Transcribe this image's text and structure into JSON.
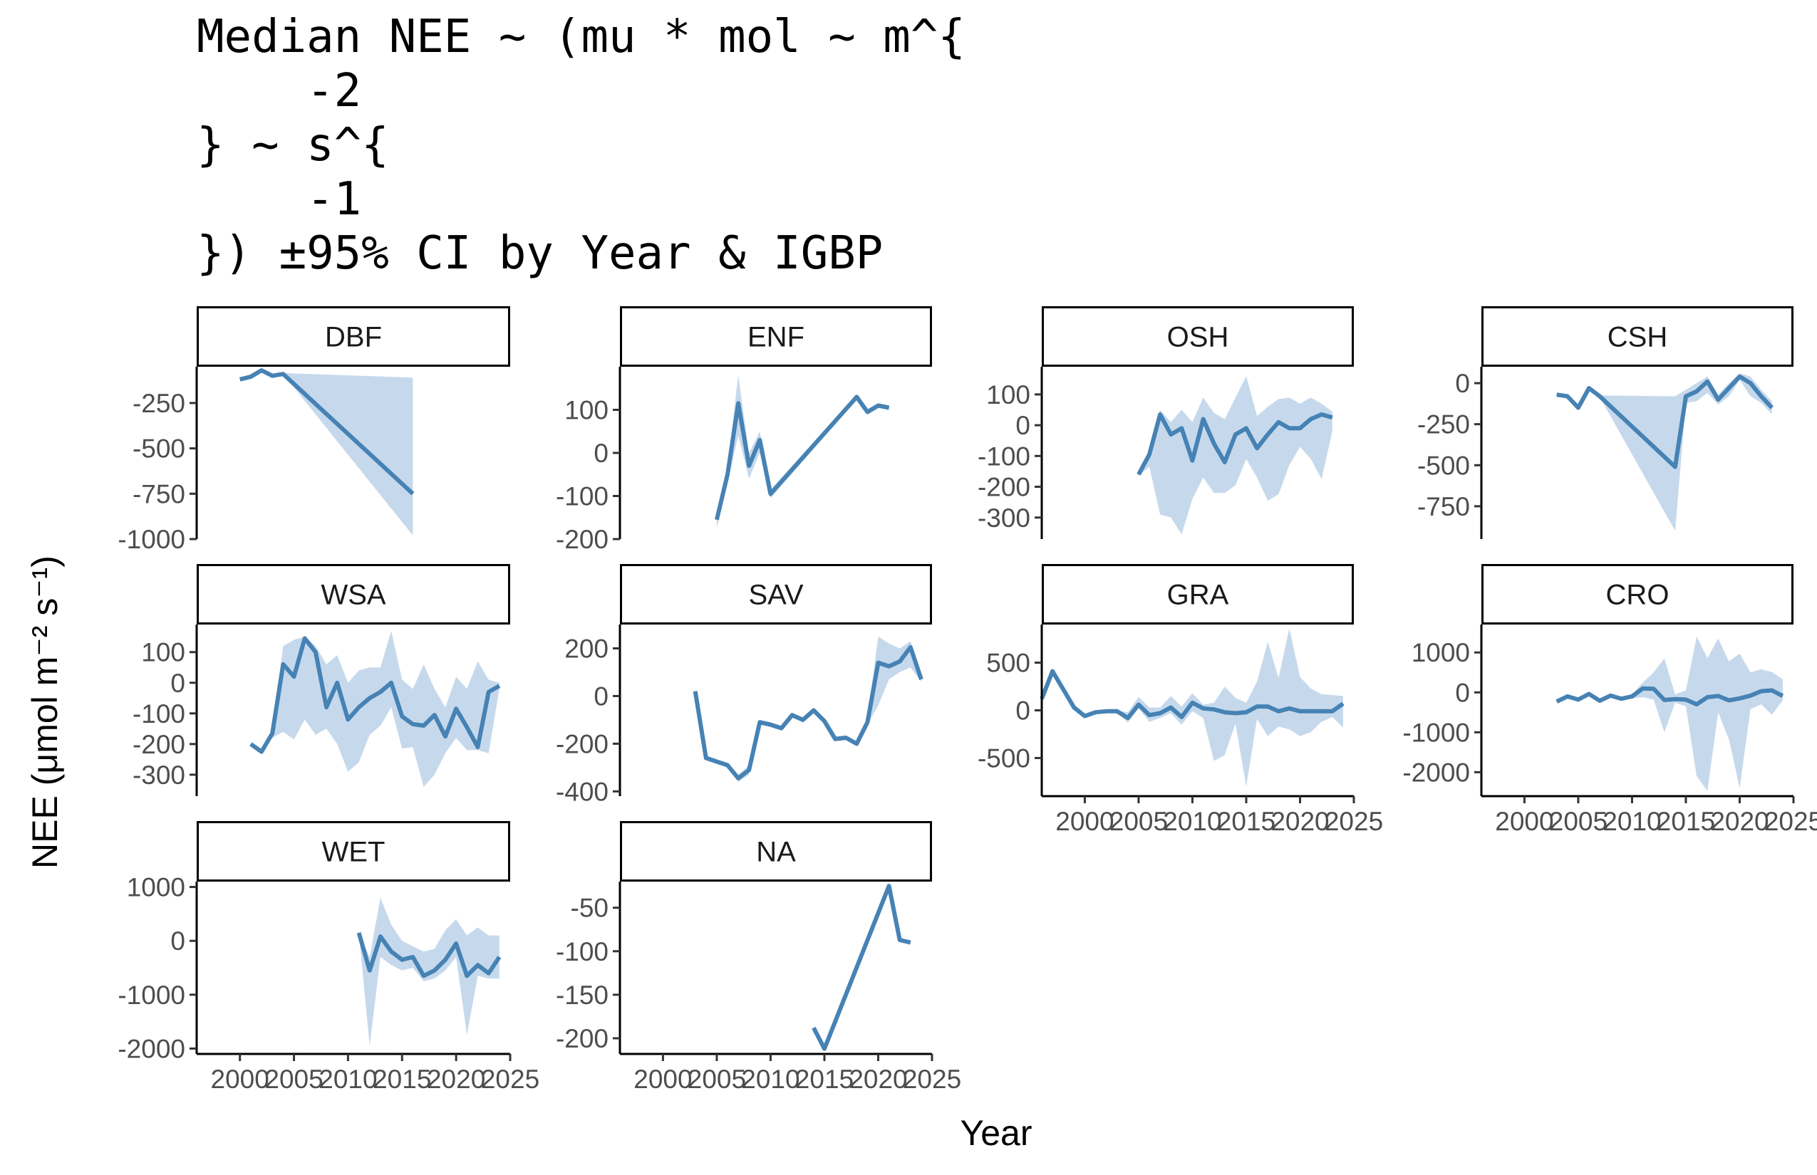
{
  "chart_data": {
    "type": "line",
    "title_lines": [
      "Median NEE ~ (mu * mol ~ m^{",
      "    -2",
      "} ~ s^{",
      "    -1",
      "}) ±95% CI by Year & IGBP"
    ],
    "xlabel": "Year",
    "ylabel": "NEE (μmol m⁻² s⁻¹)",
    "xlim": [
      1996,
      2025
    ],
    "xticks": [
      2000,
      2005,
      2010,
      2015,
      2020,
      2025
    ],
    "line_color": "#4682b4",
    "ribbon_color": "#c6d9ec",
    "grid": false,
    "legend": "none",
    "panels": [
      {
        "label": "DBF",
        "ylim": [
          -1000,
          -50
        ],
        "yticks": [
          -1000,
          -750,
          -500,
          -250
        ],
        "x": [
          2000,
          2001,
          2002,
          2003,
          2004,
          2016
        ],
        "y": [
          -120,
          -105,
          -70,
          -100,
          -90,
          -750
        ],
        "lower": [
          -120,
          -105,
          -70,
          -100,
          -90,
          -980
        ],
        "upper": [
          -120,
          -105,
          -70,
          -100,
          -85,
          -110
        ]
      },
      {
        "label": "ENF",
        "ylim": [
          -200,
          200
        ],
        "yticks": [
          -200,
          -100,
          0,
          100
        ],
        "x": [
          2005,
          2006,
          2007,
          2008,
          2009,
          2010,
          2018,
          2019,
          2020,
          2021
        ],
        "y": [
          -155,
          -50,
          115,
          -30,
          30,
          -95,
          130,
          95,
          110,
          105
        ],
        "lower": [
          -175,
          -70,
          40,
          -60,
          0,
          -105,
          125,
          90,
          105,
          100
        ],
        "upper": [
          -140,
          -30,
          180,
          0,
          50,
          -85,
          135,
          100,
          115,
          110
        ]
      },
      {
        "label": "OSH",
        "ylim": [
          -370,
          190
        ],
        "yticks": [
          -300,
          -200,
          -100,
          0,
          100
        ],
        "x": [
          2005,
          2006,
          2007,
          2008,
          2009,
          2010,
          2011,
          2012,
          2013,
          2014,
          2015,
          2016,
          2017,
          2018,
          2019,
          2020,
          2021,
          2022,
          2023
        ],
        "y": [
          -160,
          -95,
          35,
          -30,
          -10,
          -115,
          20,
          -60,
          -120,
          -30,
          -10,
          -75,
          -30,
          10,
          -10,
          -10,
          20,
          35,
          25
        ],
        "lower": [
          -165,
          -135,
          -290,
          -300,
          -355,
          -240,
          -170,
          -220,
          -220,
          -195,
          -110,
          -170,
          -245,
          -225,
          -130,
          -70,
          -110,
          -175,
          -20
        ],
        "upper": [
          -150,
          -85,
          50,
          10,
          50,
          10,
          90,
          40,
          20,
          90,
          160,
          30,
          60,
          85,
          90,
          70,
          90,
          70,
          45
        ]
      },
      {
        "label": "CSH",
        "ylim": [
          -950,
          100
        ],
        "yticks": [
          -750,
          -500,
          -250,
          0
        ],
        "x": [
          2003,
          2004,
          2005,
          2006,
          2007,
          2014,
          2015,
          2016,
          2017,
          2018,
          2019,
          2020,
          2021,
          2022,
          2023
        ],
        "y": [
          -70,
          -80,
          -150,
          -30,
          -80,
          -510,
          -80,
          -50,
          10,
          -100,
          -30,
          40,
          0,
          -80,
          -150
        ],
        "lower": [
          -75,
          -85,
          -155,
          -35,
          -85,
          -900,
          -120,
          -110,
          -60,
          -130,
          -80,
          20,
          -80,
          -120,
          -190
        ],
        "upper": [
          -65,
          -75,
          -145,
          -25,
          -75,
          -80,
          -40,
          0,
          40,
          -70,
          0,
          60,
          40,
          -40,
          -110
        ]
      },
      {
        "label": "WSA",
        "ylim": [
          -370,
          190
        ],
        "yticks": [
          -300,
          -200,
          -100,
          0,
          100
        ],
        "x": [
          2001,
          2002,
          2003,
          2004,
          2005,
          2006,
          2007,
          2008,
          2009,
          2010,
          2011,
          2012,
          2013,
          2014,
          2015,
          2016,
          2017,
          2018,
          2019,
          2020,
          2021,
          2022,
          2023,
          2024
        ],
        "y": [
          -200,
          -225,
          -165,
          60,
          20,
          145,
          100,
          -80,
          0,
          -120,
          -80,
          -50,
          -30,
          0,
          -110,
          -135,
          -140,
          -105,
          -175,
          -85,
          -145,
          -210,
          -30,
          -10
        ],
        "lower": [
          -200,
          -225,
          -180,
          -160,
          -185,
          -120,
          -170,
          -150,
          -200,
          -290,
          -260,
          -170,
          -140,
          -80,
          -215,
          -210,
          -340,
          -300,
          -230,
          -180,
          -220,
          -220,
          -230,
          -20
        ],
        "upper": [
          -200,
          -225,
          -150,
          120,
          140,
          150,
          120,
          60,
          90,
          0,
          40,
          50,
          50,
          170,
          10,
          -20,
          60,
          -20,
          -80,
          20,
          -20,
          70,
          10,
          0
        ]
      },
      {
        "label": "SAV",
        "ylim": [
          -420,
          300
        ],
        "yticks": [
          -400,
          -200,
          0,
          200
        ],
        "x": [
          2003,
          2004,
          2005,
          2006,
          2007,
          2008,
          2009,
          2010,
          2011,
          2012,
          2013,
          2014,
          2015,
          2016,
          2017,
          2018,
          2019,
          2020,
          2021,
          2022,
          2023,
          2024
        ],
        "y": [
          20,
          -260,
          -275,
          -290,
          -345,
          -310,
          -110,
          -120,
          -135,
          -80,
          -100,
          -60,
          -105,
          -180,
          -175,
          -200,
          -110,
          140,
          125,
          145,
          205,
          70
        ],
        "lower": [
          20,
          -260,
          -280,
          -300,
          -360,
          -330,
          -120,
          -130,
          -140,
          -90,
          -110,
          -70,
          -115,
          -190,
          -185,
          -210,
          -120,
          -40,
          70,
          100,
          120,
          60
        ],
        "upper": [
          20,
          -255,
          -270,
          -285,
          -330,
          -290,
          -100,
          -110,
          -125,
          -70,
          -90,
          -50,
          -95,
          -170,
          -165,
          -190,
          -90,
          250,
          220,
          200,
          230,
          80
        ]
      },
      {
        "label": "GRA",
        "ylim": [
          -900,
          900
        ],
        "yticks": [
          -500,
          0,
          500
        ],
        "x": [
          1996,
          1997,
          1998,
          1999,
          2000,
          2001,
          2002,
          2003,
          2004,
          2005,
          2006,
          2007,
          2008,
          2009,
          2010,
          2011,
          2012,
          2013,
          2014,
          2015,
          2016,
          2017,
          2018,
          2019,
          2020,
          2021,
          2022,
          2023,
          2024
        ],
        "y": [
          120,
          410,
          220,
          30,
          -60,
          -20,
          -10,
          -10,
          -80,
          60,
          -50,
          -30,
          30,
          -70,
          80,
          20,
          10,
          -20,
          -30,
          -20,
          40,
          40,
          -10,
          20,
          -10,
          -10,
          -10,
          -10,
          70
        ],
        "lower": [
          120,
          410,
          220,
          20,
          -70,
          -30,
          -20,
          -20,
          -130,
          20,
          -120,
          -80,
          -30,
          -150,
          -10,
          -80,
          -530,
          -470,
          -140,
          -800,
          -90,
          -270,
          -170,
          -200,
          -270,
          -230,
          -120,
          -70,
          -180
        ],
        "upper": [
          120,
          410,
          220,
          40,
          -50,
          -10,
          0,
          0,
          -20,
          140,
          30,
          30,
          150,
          40,
          180,
          60,
          80,
          250,
          130,
          80,
          300,
          720,
          340,
          860,
          350,
          230,
          170,
          160,
          150
        ]
      },
      {
        "label": "CRO",
        "ylim": [
          -2600,
          1700
        ],
        "yticks": [
          -2000,
          -1000,
          0,
          1000
        ],
        "x": [
          2003,
          2004,
          2005,
          2006,
          2007,
          2008,
          2009,
          2010,
          2011,
          2012,
          2013,
          2014,
          2015,
          2016,
          2017,
          2018,
          2019,
          2020,
          2021,
          2022,
          2023,
          2024
        ],
        "y": [
          -230,
          -100,
          -180,
          -40,
          -210,
          -80,
          -160,
          -100,
          100,
          90,
          -190,
          -170,
          -180,
          -300,
          -120,
          -90,
          -200,
          -150,
          -80,
          30,
          50,
          -90
        ],
        "lower": [
          -240,
          -110,
          -190,
          -60,
          -230,
          -110,
          -190,
          -150,
          -120,
          -180,
          -1000,
          -260,
          -350,
          -2100,
          -2470,
          -500,
          -1180,
          -2400,
          -420,
          -300,
          -560,
          -200
        ],
        "upper": [
          -220,
          -90,
          -170,
          -20,
          -190,
          -50,
          -130,
          -50,
          250,
          500,
          850,
          -50,
          50,
          1400,
          860,
          1350,
          780,
          970,
          500,
          580,
          510,
          330
        ]
      },
      {
        "label": "WET",
        "ylim": [
          -2100,
          1100
        ],
        "yticks": [
          -2000,
          -1000,
          0,
          1000
        ],
        "x": [
          2011,
          2012,
          2013,
          2014,
          2015,
          2016,
          2017,
          2018,
          2019,
          2020,
          2021,
          2022,
          2023,
          2024
        ],
        "y": [
          150,
          -550,
          80,
          -200,
          -350,
          -300,
          -650,
          -550,
          -350,
          -50,
          -650,
          -450,
          -600,
          -300
        ],
        "lower": [
          150,
          -1950,
          -300,
          -450,
          -550,
          -500,
          -750,
          -700,
          -550,
          -300,
          -1750,
          -650,
          -700,
          -700
        ],
        "upper": [
          150,
          -300,
          800,
          300,
          0,
          -100,
          -200,
          -150,
          200,
          400,
          100,
          250,
          100,
          100
        ]
      },
      {
        "label": "NA",
        "ylim": [
          -218,
          -20
        ],
        "yticks": [
          -200,
          -150,
          -100,
          -50
        ],
        "x": [
          2014,
          2015,
          2021,
          2022,
          2023
        ],
        "y": [
          -188,
          -212,
          -25,
          -87,
          -90
        ],
        "lower": [
          -188,
          -212,
          -25,
          -87,
          -90
        ],
        "upper": [
          -188,
          -212,
          -25,
          -87,
          -90
        ]
      }
    ]
  }
}
